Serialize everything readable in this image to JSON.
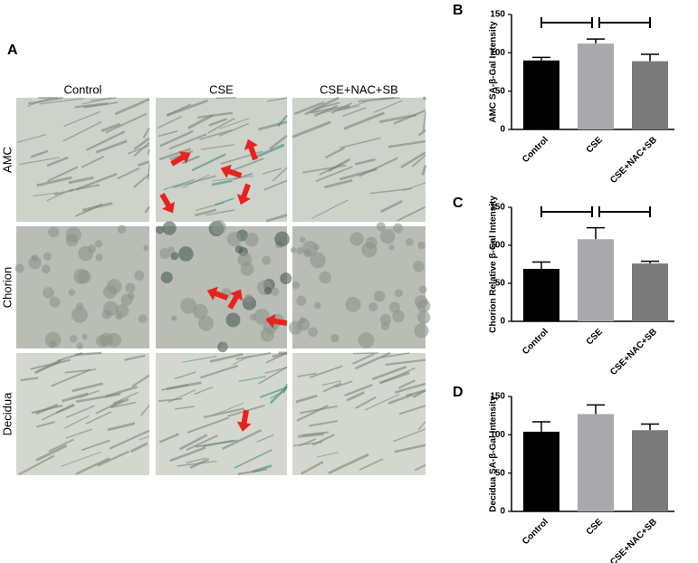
{
  "panel_a": {
    "label": "A",
    "columns": [
      "Control",
      "CSE",
      "CSE+NAC+SB"
    ],
    "rows": [
      "AMC",
      "Chorion",
      "Decidua"
    ]
  },
  "chart_data": [
    {
      "type": "bar",
      "panel": "B",
      "ylabel": "AMC SA-β-Gal Intensity",
      "categories": [
        "Control",
        "CSE",
        "CSE+NAC+SB"
      ],
      "values": [
        90,
        112,
        89
      ],
      "errors": [
        4,
        6,
        9
      ],
      "colors": [
        "#000000",
        "#a9a8ad",
        "#7a7a7a"
      ],
      "ylim": [
        0,
        150
      ],
      "yticks": [
        0,
        50,
        100,
        150
      ]
    },
    {
      "type": "bar",
      "panel": "C",
      "ylabel": "Chorion Relative β-Gal Intensity",
      "categories": [
        "Control",
        "CSE",
        "CSE+NAC+SB"
      ],
      "values": [
        69,
        108,
        76
      ],
      "errors": [
        9,
        15,
        3
      ],
      "colors": [
        "#000000",
        "#a9a8ad",
        "#7a7a7a"
      ],
      "ylim": [
        0,
        150
      ],
      "yticks": [
        0,
        50,
        100,
        150
      ]
    },
    {
      "type": "bar",
      "panel": "D",
      "ylabel": "Decidua SA-β-Gal Intensity",
      "categories": [
        "Control",
        "CSE",
        "CSE+NAC+SB"
      ],
      "values": [
        104,
        127,
        106
      ],
      "errors": [
        13,
        12,
        8
      ],
      "colors": [
        "#000000",
        "#a9a8ad",
        "#7a7a7a"
      ],
      "ylim": [
        0,
        150
      ],
      "yticks": [
        0,
        50,
        100,
        150
      ]
    }
  ]
}
